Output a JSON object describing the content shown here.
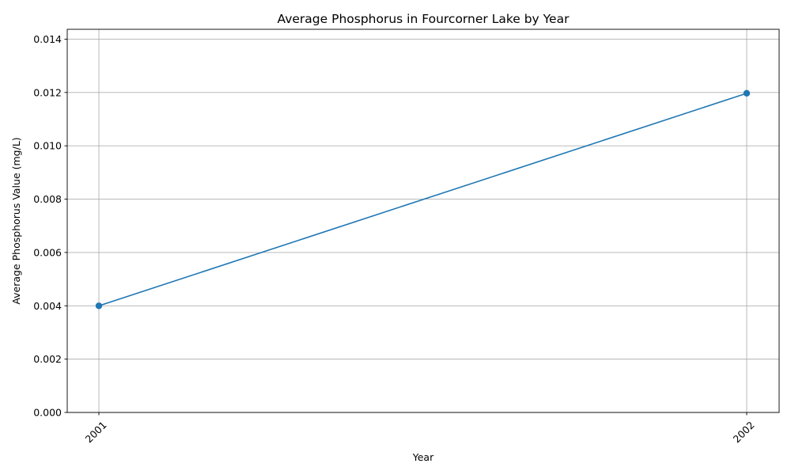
{
  "chart_data": {
    "type": "line",
    "title": "Average Phosphorus in Fourcorner Lake by Year",
    "xlabel": "Year",
    "ylabel": "Average Phosphorus Value (mg/L)",
    "categories": [
      "2001",
      "2002"
    ],
    "series": [
      {
        "values": [
          0.004,
          0.01197
        ]
      }
    ],
    "ylim": [
      0,
      0.01437
    ],
    "yticks": [
      "0.000",
      "0.002",
      "0.004",
      "0.006",
      "0.008",
      "0.010",
      "0.012",
      "0.014"
    ],
    "grid": true,
    "legend": "none",
    "line_color": "#1f77b4",
    "marker": "circle"
  }
}
